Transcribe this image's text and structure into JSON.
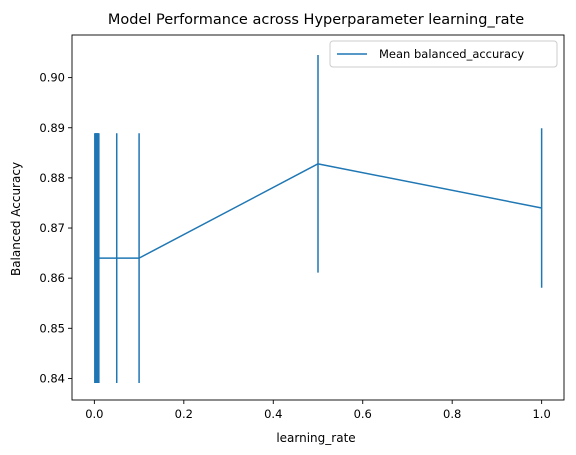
{
  "chart_data": {
    "type": "line",
    "title": "Model Performance across Hyperparameter learning_rate",
    "xlabel": "learning_rate",
    "ylabel": "Balanced Accuracy",
    "xlim": [
      -0.05,
      1.05
    ],
    "ylim": [
      0.8357,
      0.9085
    ],
    "xticks": [
      0.0,
      0.2,
      0.4,
      0.6,
      0.8,
      1.0
    ],
    "xtick_labels": [
      "0.0",
      "0.2",
      "0.4",
      "0.6",
      "0.8",
      "1.0"
    ],
    "yticks": [
      0.84,
      0.85,
      0.86,
      0.87,
      0.88,
      0.89,
      0.9
    ],
    "ytick_labels": [
      "0.84",
      "0.85",
      "0.86",
      "0.87",
      "0.88",
      "0.89",
      "0.90"
    ],
    "grid": false,
    "legend_position": "top-right",
    "series": [
      {
        "name": "Mean balanced_accuracy",
        "color": "#1f77b4",
        "x": [
          0.001,
          0.002,
          0.003,
          0.004,
          0.005,
          0.006,
          0.007,
          0.008,
          0.009,
          0.01,
          0.05,
          0.1,
          0.5,
          1.0
        ],
        "y": [
          0.864,
          0.864,
          0.864,
          0.864,
          0.864,
          0.864,
          0.864,
          0.864,
          0.864,
          0.864,
          0.864,
          0.864,
          0.8828,
          0.874
        ],
        "yerr": [
          0.0249,
          0.0249,
          0.0249,
          0.0249,
          0.0249,
          0.0249,
          0.0249,
          0.0249,
          0.0249,
          0.0249,
          0.0249,
          0.0249,
          0.0217,
          0.0159
        ]
      }
    ]
  }
}
